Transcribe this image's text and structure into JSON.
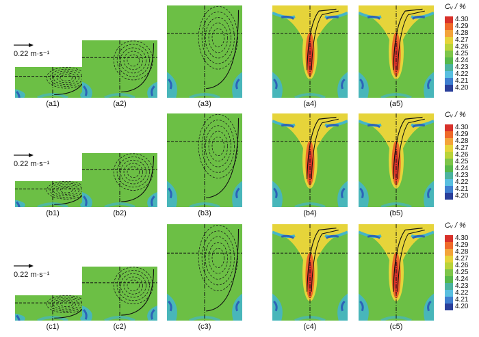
{
  "velocity_scale": {
    "label": "0.22 m·s⁻¹"
  },
  "colorbar": {
    "title": "Cᵥ / %",
    "ticks": [
      "4.30",
      "4.29",
      "4.28",
      "4.27",
      "4.26",
      "4.25",
      "4.24",
      "4.23",
      "4.22",
      "4.21",
      "4.20"
    ],
    "colors": [
      "#d8312a",
      "#ef6a2a",
      "#f3a43a",
      "#e6d43a",
      "#b9d33a",
      "#7ec54a",
      "#56b84a",
      "#4cb3a0",
      "#59bfe0",
      "#3f7fd0",
      "#2a3f9a"
    ]
  },
  "field_colors": {
    "base": "#6cbf45",
    "cool": "#45b5c7",
    "deep": "#2d63b8",
    "warm": "#e6d43a",
    "hot": "#ef6a2a",
    "core": "#d8312a"
  },
  "rows": [
    {
      "captions": [
        "(a1)",
        "(a2)",
        "(a3)",
        "(a4)",
        "(a5)"
      ]
    },
    {
      "captions": [
        "(b1)",
        "(b2)",
        "(b3)",
        "(b4)",
        "(b5)"
      ]
    },
    {
      "captions": [
        "(c1)",
        "(c2)",
        "(c3)",
        "(c4)",
        "(c5)"
      ]
    }
  ]
}
